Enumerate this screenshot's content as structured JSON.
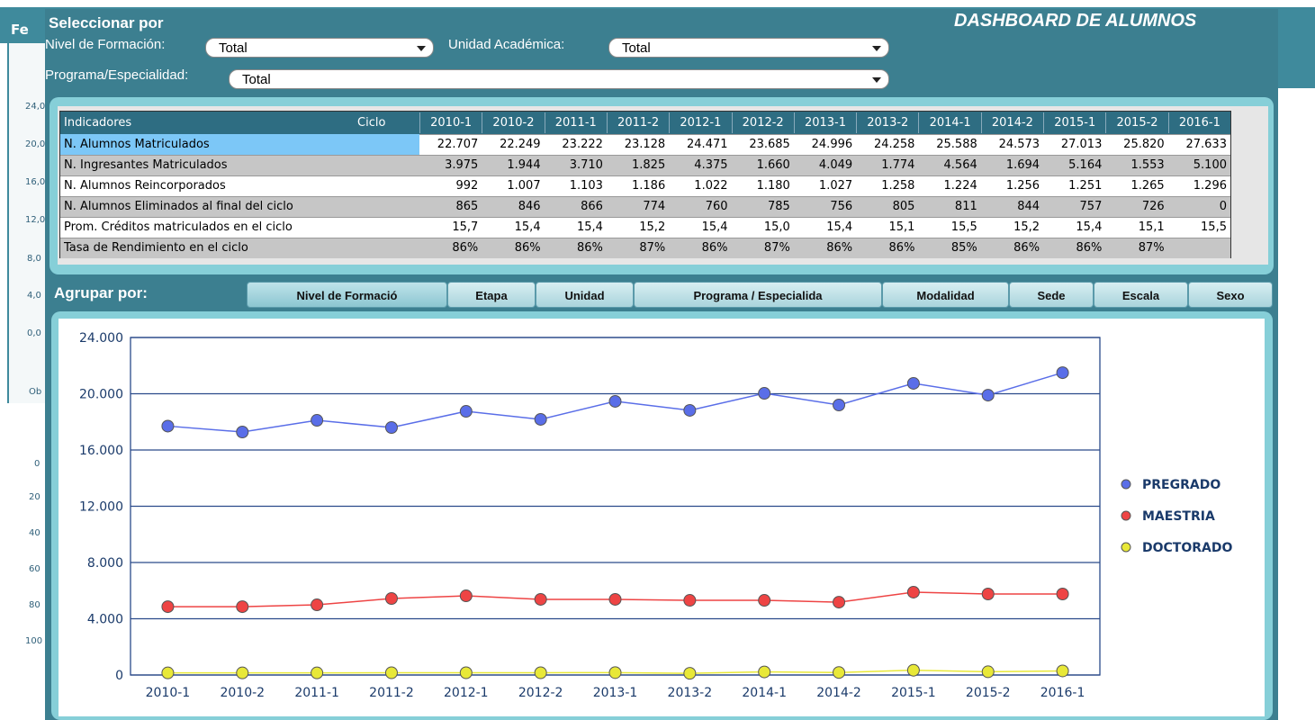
{
  "header": {
    "title": "DASHBOARD DE ALUMNOS",
    "select_label": "Seleccionar por",
    "filters": [
      {
        "label": "Nivel de Formación:",
        "value": "Total"
      },
      {
        "label": "Unidad Académica:",
        "value": "Total"
      },
      {
        "label": "Programa/Especialidad:",
        "value": "Total"
      }
    ]
  },
  "background": {
    "fragments": [
      "Fe",
      "24,0",
      "20,0",
      "16,0",
      "12,0",
      "8,0",
      "4,0",
      "0,0",
      "Ob",
      "0",
      "20",
      "40",
      "60",
      "80",
      "100"
    ]
  },
  "table": {
    "header": [
      "Indicadores",
      "Ciclo"
    ],
    "periods": [
      "2010-1",
      "2010-2",
      "2011-1",
      "2011-2",
      "2012-1",
      "2012-2",
      "2013-1",
      "2013-2",
      "2014-1",
      "2014-2",
      "2015-1",
      "2015-2",
      "2016-1"
    ],
    "rows": [
      {
        "label": "N. Alumnos Matriculados",
        "values": [
          "22.707",
          "22.249",
          "23.222",
          "23.128",
          "24.471",
          "23.685",
          "24.996",
          "24.258",
          "25.588",
          "24.573",
          "27.013",
          "25.820",
          "27.633"
        ]
      },
      {
        "label": "N. Ingresantes Matriculados",
        "values": [
          "3.975",
          "1.944",
          "3.710",
          "1.825",
          "4.375",
          "1.660",
          "4.049",
          "1.774",
          "4.564",
          "1.694",
          "5.164",
          "1.553",
          "5.100"
        ]
      },
      {
        "label": "N. Alumnos Reincorporados",
        "values": [
          "992",
          "1.007",
          "1.103",
          "1.186",
          "1.022",
          "1.180",
          "1.027",
          "1.258",
          "1.224",
          "1.256",
          "1.251",
          "1.265",
          "1.296"
        ]
      },
      {
        "label": "N. Alumnos Eliminados al final del ciclo",
        "values": [
          "865",
          "846",
          "866",
          "774",
          "760",
          "785",
          "756",
          "805",
          "811",
          "844",
          "757",
          "726",
          "0"
        ]
      },
      {
        "label": "Prom. Créditos matriculados en el ciclo",
        "values": [
          "15,7",
          "15,4",
          "15,4",
          "15,2",
          "15,4",
          "15,0",
          "15,4",
          "15,1",
          "15,5",
          "15,2",
          "15,4",
          "15,1",
          "15,5"
        ]
      },
      {
        "label": "Tasa de Rendimiento en el ciclo",
        "values": [
          "86%",
          "86%",
          "86%",
          "87%",
          "86%",
          "87%",
          "86%",
          "86%",
          "85%",
          "86%",
          "86%",
          "87%"
        ]
      }
    ]
  },
  "group_by": {
    "label": "Agrupar por:",
    "tabs": [
      "Nivel de Formació",
      "Etapa",
      "Unidad",
      "Programa / Especialida",
      "Modalidad",
      "Sede",
      "Escala",
      "Sexo"
    ]
  },
  "chart_data": {
    "type": "line",
    "categories": [
      "2010-1",
      "2010-2",
      "2011-1",
      "2011-2",
      "2012-1",
      "2012-2",
      "2013-1",
      "2013-2",
      "2014-1",
      "2014-2",
      "2015-1",
      "2015-2",
      "2016-1"
    ],
    "ylim": [
      0,
      24000
    ],
    "yticks": [
      0,
      {
        "value": 4000,
        "label": "4.000"
      },
      {
        "value": 8000,
        "label": "8.000"
      },
      {
        "value": 12000,
        "label": "12.000"
      },
      {
        "value": 16000,
        "label": "16.000"
      },
      {
        "value": 20000,
        "label": "20.000"
      },
      {
        "value": 24000,
        "label": "24.000"
      }
    ],
    "grid": true,
    "series": [
      {
        "name": "PREGRADO",
        "color": "#5a6ee8",
        "values": [
          17700,
          17280,
          18110,
          17600,
          18750,
          18180,
          19460,
          18820,
          20030,
          19200,
          20740,
          19900,
          21500
        ]
      },
      {
        "name": "MAESTRIA",
        "color": "#ee4444",
        "values": [
          4860,
          4860,
          4990,
          5440,
          5630,
          5380,
          5380,
          5310,
          5310,
          5180,
          5890,
          5760,
          5760
        ]
      },
      {
        "name": "DOCTORADO",
        "color": "#e8e838",
        "values": [
          150,
          150,
          150,
          160,
          160,
          160,
          170,
          120,
          220,
          180,
          340,
          230,
          290
        ]
      }
    ]
  }
}
